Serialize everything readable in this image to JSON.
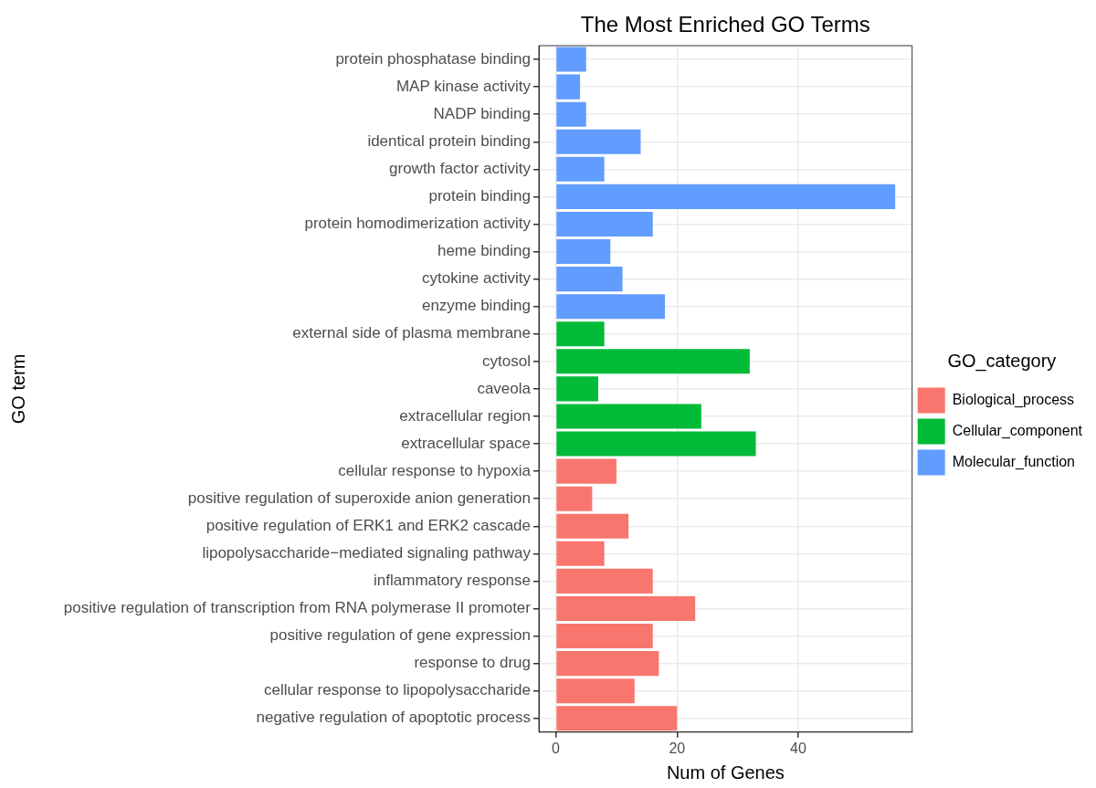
{
  "chart_data": {
    "type": "bar",
    "orientation": "horizontal",
    "title": "The Most Enriched GO Terms",
    "xlabel": "Num of Genes",
    "ylabel": "GO term",
    "legend_title": "GO_category",
    "legend": "right",
    "grid": true,
    "categories": [
      "protein phosphatase binding",
      "MAP kinase activity",
      "NADP binding",
      "identical protein binding",
      "growth factor activity",
      "protein binding",
      "protein homodimerization activity",
      "heme binding",
      "cytokine activity",
      "enzyme binding",
      "external side of plasma membrane",
      "cytosol",
      "caveola",
      "extracellular region",
      "extracellular space",
      "cellular response to hypoxia",
      "positive regulation of superoxide anion generation",
      "positive regulation of ERK1 and ERK2 cascade",
      "lipopolysaccharide−mediated signaling pathway",
      "inflammatory response",
      "positive regulation of transcription from RNA polymerase II promoter",
      "positive regulation of gene expression",
      "response to drug",
      "cellular response to lipopolysaccharide",
      "negative regulation of apoptotic process"
    ],
    "series": [
      {
        "name": "Biological_process",
        "color": "#f8766d",
        "values": [
          null,
          null,
          null,
          null,
          null,
          null,
          null,
          null,
          null,
          null,
          null,
          null,
          null,
          null,
          null,
          10,
          6,
          12,
          8,
          16,
          23,
          16,
          17,
          13,
          20
        ]
      },
      {
        "name": "Cellular_component",
        "color": "#00ba38",
        "values": [
          null,
          null,
          null,
          null,
          null,
          null,
          null,
          null,
          null,
          null,
          8,
          32,
          7,
          24,
          33,
          null,
          null,
          null,
          null,
          null,
          null,
          null,
          null,
          null,
          null
        ]
      },
      {
        "name": "Molecular_function",
        "color": "#619cff",
        "values": [
          5,
          4,
          5,
          14,
          8,
          56,
          16,
          9,
          11,
          18,
          null,
          null,
          null,
          null,
          null,
          null,
          null,
          null,
          null,
          null,
          null,
          null,
          null,
          null,
          null
        ]
      }
    ],
    "xlim": [
      -2.8,
      58.8
    ],
    "xticks": [
      0,
      20,
      40
    ]
  }
}
